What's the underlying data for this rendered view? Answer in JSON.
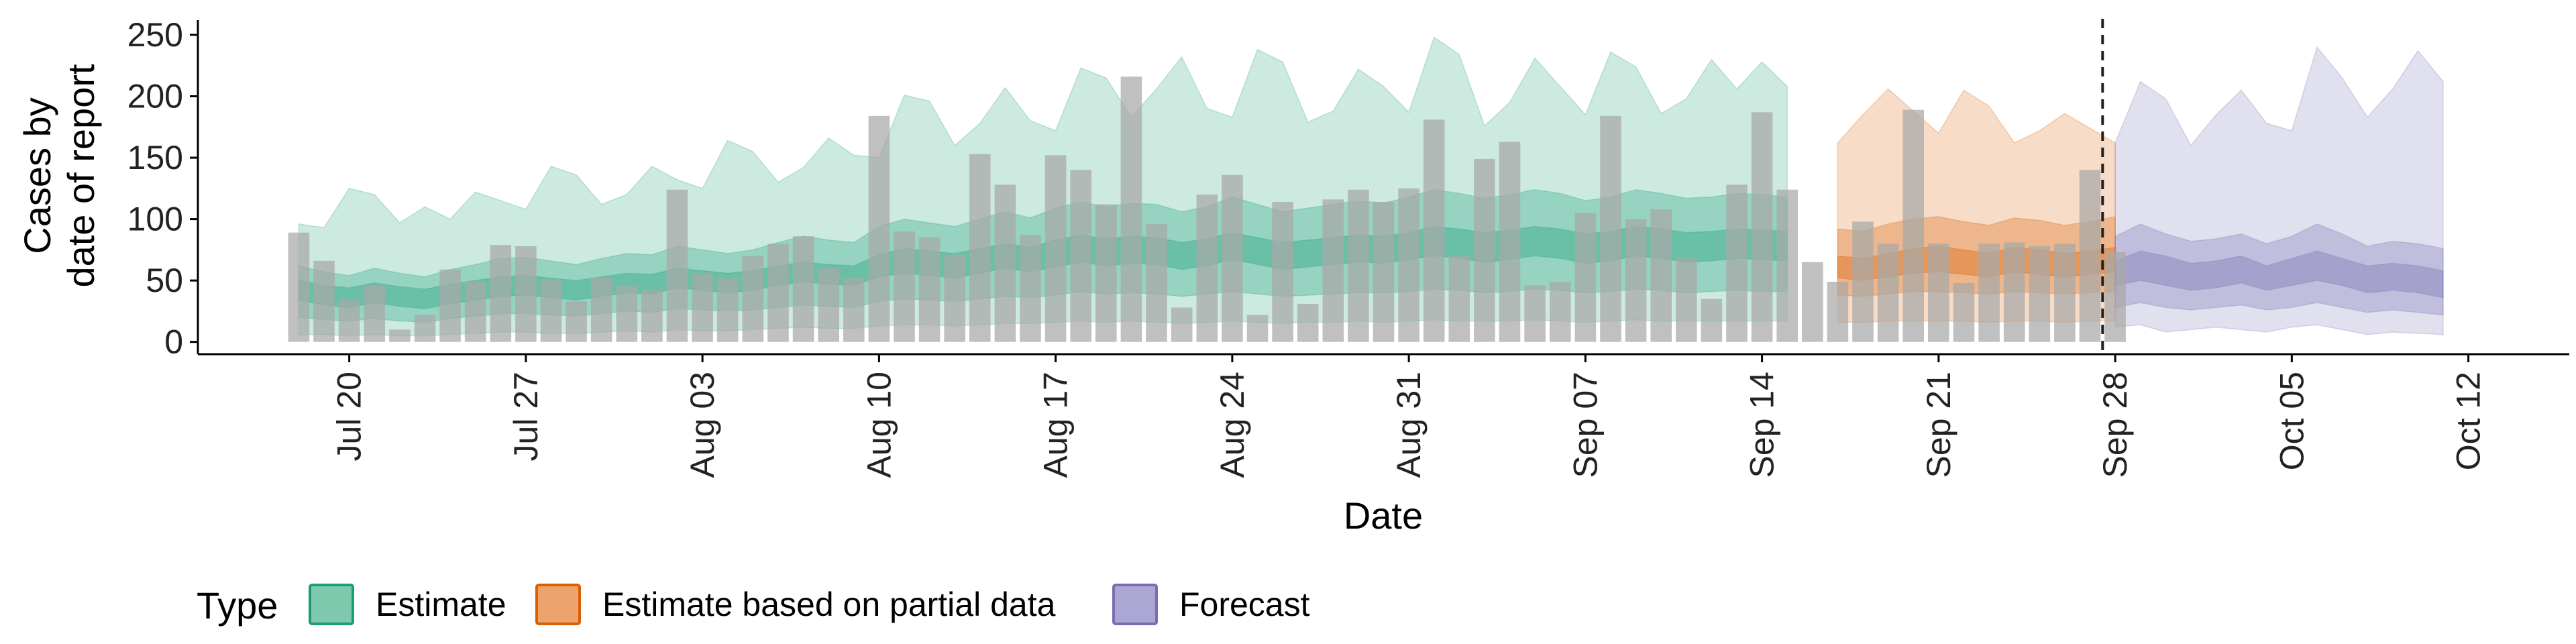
{
  "chart_data": {
    "type": "area",
    "title": "",
    "xlabel": "Date",
    "ylabel_lines": [
      "Cases by",
      "date of report"
    ],
    "x_range": [
      "2020-07-14",
      "2020-10-16"
    ],
    "y_range": [
      -10,
      262
    ],
    "y_ticks": [
      0,
      50,
      100,
      150,
      200,
      250
    ],
    "x_ticks": [
      {
        "date": "2020-07-20",
        "label": "Jul 20"
      },
      {
        "date": "2020-07-27",
        "label": "Jul 27"
      },
      {
        "date": "2020-08-03",
        "label": "Aug 03"
      },
      {
        "date": "2020-08-10",
        "label": "Aug 10"
      },
      {
        "date": "2020-08-17",
        "label": "Aug 17"
      },
      {
        "date": "2020-08-24",
        "label": "Aug 24"
      },
      {
        "date": "2020-08-31",
        "label": "Aug 31"
      },
      {
        "date": "2020-09-07",
        "label": "Sep 07"
      },
      {
        "date": "2020-09-14",
        "label": "Sep 14"
      },
      {
        "date": "2020-09-21",
        "label": "Sep 21"
      },
      {
        "date": "2020-09-28",
        "label": "Sep 28"
      },
      {
        "date": "2020-10-05",
        "label": "Oct 05"
      },
      {
        "date": "2020-10-12",
        "label": "Oct 12"
      }
    ],
    "forecast_cutoff": "2020-09-27",
    "grid": false,
    "legend": {
      "title": "Type",
      "placement": "bottom",
      "entries": [
        {
          "label": "Estimate",
          "fill": "#7fc9ae",
          "stroke": "#1b9e77"
        },
        {
          "label": "Estimate based on partial data",
          "fill": "#eda36b",
          "stroke": "#d95f02"
        },
        {
          "label": "Forecast",
          "fill": "#aba7d2",
          "stroke": "#7570b3"
        }
      ]
    },
    "colors": {
      "estimate": "#1b9e77",
      "partial": "#d95f02",
      "forecast": "#7570b3",
      "bars": "#a8a8a8"
    },
    "observed_cases": {
      "start": "2020-07-18",
      "values": [
        89,
        66,
        35,
        46,
        10,
        22,
        59,
        49,
        79,
        78,
        51,
        33,
        52,
        46,
        42,
        124,
        56,
        52,
        70,
        80,
        86,
        60,
        52,
        184,
        90,
        85,
        71,
        153,
        128,
        87,
        152,
        140,
        112,
        216,
        96,
        28,
        120,
        136,
        22,
        114,
        31,
        116,
        124,
        114,
        125,
        181,
        70,
        149,
        163,
        46,
        49,
        105,
        184,
        100,
        108,
        68,
        35,
        128,
        187,
        124,
        65,
        49,
        98,
        80,
        189,
        80,
        48,
        80,
        81,
        78,
        80,
        140,
        73
      ]
    },
    "series": [
      {
        "name": "Estimate",
        "start": "2020-07-18",
        "median": [
          42,
          38,
          36,
          40,
          37,
          35,
          39,
          42,
          45,
          46,
          44,
          42,
          45,
          48,
          47,
          52,
          50,
          48,
          50,
          54,
          57,
          55,
          54,
          62,
          66,
          64,
          62,
          66,
          70,
          67,
          72,
          76,
          73,
          75,
          74,
          70,
          73,
          78,
          74,
          70,
          72,
          74,
          76,
          75,
          78,
          82,
          80,
          77,
          79,
          82,
          80,
          76,
          78,
          82,
          80,
          77,
          78,
          80,
          79,
          78
        ],
        "lower_20": [
          34,
          30,
          28,
          32,
          29,
          27,
          31,
          34,
          37,
          38,
          36,
          34,
          37,
          40,
          39,
          44,
          42,
          40,
          42,
          46,
          49,
          47,
          46,
          53,
          56,
          54,
          52,
          56,
          60,
          57,
          61,
          65,
          62,
          64,
          63,
          59,
          62,
          67,
          63,
          59,
          61,
          63,
          65,
          64,
          67,
          70,
          68,
          65,
          67,
          70,
          68,
          64,
          66,
          70,
          68,
          65,
          66,
          68,
          67,
          66
        ],
        "upper_20": [
          50,
          46,
          44,
          48,
          45,
          43,
          47,
          50,
          53,
          54,
          52,
          50,
          53,
          56,
          55,
          60,
          58,
          56,
          58,
          62,
          65,
          63,
          62,
          71,
          76,
          74,
          72,
          76,
          80,
          77,
          83,
          87,
          84,
          86,
          85,
          81,
          84,
          89,
          85,
          81,
          83,
          85,
          87,
          86,
          89,
          94,
          92,
          89,
          91,
          94,
          92,
          88,
          90,
          94,
          92,
          89,
          90,
          92,
          91,
          90
        ],
        "lower_50": [
          20,
          18,
          17,
          19,
          17,
          16,
          19,
          21,
          23,
          23,
          22,
          21,
          23,
          25,
          24,
          27,
          26,
          25,
          26,
          28,
          30,
          29,
          28,
          33,
          35,
          34,
          33,
          35,
          37,
          36,
          38,
          41,
          39,
          40,
          39,
          37,
          39,
          41,
          39,
          37,
          38,
          39,
          40,
          40,
          41,
          43,
          42,
          40,
          41,
          43,
          42,
          40,
          41,
          43,
          42,
          40,
          41,
          42,
          41,
          41
        ],
        "upper_50": [
          62,
          57,
          54,
          60,
          56,
          53,
          59,
          63,
          68,
          69,
          66,
          63,
          68,
          72,
          71,
          78,
          75,
          72,
          75,
          81,
          86,
          83,
          81,
          94,
          100,
          97,
          94,
          100,
          106,
          101,
          109,
          114,
          110,
          113,
          112,
          106,
          110,
          118,
          112,
          106,
          109,
          112,
          115,
          113,
          118,
          124,
          121,
          117,
          120,
          124,
          121,
          115,
          118,
          124,
          121,
          117,
          118,
          121,
          120,
          118
        ],
        "lower_90": [
          6,
          6,
          5,
          6,
          5,
          5,
          6,
          7,
          8,
          8,
          7,
          7,
          8,
          9,
          8,
          10,
          9,
          9,
          10,
          11,
          12,
          11,
          11,
          13,
          14,
          14,
          13,
          14,
          15,
          15,
          16,
          17,
          16,
          17,
          16,
          15,
          16,
          17,
          16,
          15,
          16,
          16,
          17,
          16,
          17,
          18,
          17,
          17,
          17,
          18,
          17,
          16,
          17,
          18,
          17,
          17,
          17,
          17,
          17,
          17
        ],
        "upper_90": [
          96,
          93,
          125,
          120,
          97,
          110,
          100,
          122,
          115,
          108,
          143,
          136,
          112,
          120,
          143,
          132,
          125,
          164,
          155,
          130,
          142,
          166,
          152,
          150,
          201,
          196,
          160,
          178,
          207,
          180,
          172,
          223,
          215,
          183,
          206,
          232,
          190,
          183,
          238,
          228,
          179,
          188,
          222,
          208,
          187,
          248,
          234,
          176,
          195,
          231,
          208,
          185,
          236,
          224,
          186,
          198,
          230,
          206,
          228,
          208
        ]
      },
      {
        "name": "Estimate based on partial data",
        "start": "2020-09-17",
        "median": [
          60,
          58,
          62,
          65,
          66,
          64,
          62,
          66,
          64,
          62,
          64,
          66
        ],
        "lower_20": [
          52,
          50,
          53,
          56,
          57,
          55,
          53,
          57,
          55,
          53,
          55,
          57
        ],
        "upper_20": [
          70,
          68,
          72,
          76,
          78,
          75,
          72,
          77,
          75,
          72,
          74,
          77
        ],
        "lower_50": [
          38,
          37,
          39,
          41,
          41,
          40,
          39,
          41,
          40,
          39,
          40,
          41
        ],
        "upper_50": [
          92,
          90,
          96,
          100,
          102,
          98,
          95,
          101,
          99,
          95,
          98,
          102
        ],
        "lower_90": [
          16,
          16,
          17,
          17,
          17,
          17,
          16,
          17,
          17,
          16,
          17,
          17
        ],
        "upper_90": [
          162,
          185,
          206,
          188,
          170,
          205,
          192,
          162,
          172,
          186,
          174,
          162
        ]
      },
      {
        "name": "Forecast",
        "start": "2020-09-28",
        "median": [
          56,
          62,
          58,
          52,
          54,
          58,
          52,
          56,
          62,
          56,
          50,
          52,
          50,
          46
        ],
        "lower_20": [
          46,
          50,
          46,
          42,
          44,
          48,
          42,
          46,
          50,
          46,
          40,
          42,
          40,
          36
        ],
        "upper_20": [
          66,
          74,
          70,
          64,
          66,
          70,
          62,
          68,
          74,
          68,
          62,
          64,
          62,
          58
        ],
        "lower_50": [
          28,
          32,
          28,
          26,
          28,
          30,
          26,
          28,
          32,
          28,
          24,
          26,
          24,
          22
        ],
        "upper_50": [
          86,
          96,
          88,
          82,
          84,
          88,
          80,
          86,
          96,
          88,
          78,
          82,
          80,
          76
        ],
        "lower_90": [
          12,
          14,
          8,
          10,
          12,
          10,
          8,
          12,
          14,
          10,
          6,
          8,
          7,
          6
        ],
        "upper_90": [
          162,
          212,
          198,
          160,
          185,
          205,
          178,
          172,
          240,
          215,
          183,
          206,
          237,
          212
        ]
      }
    ]
  }
}
